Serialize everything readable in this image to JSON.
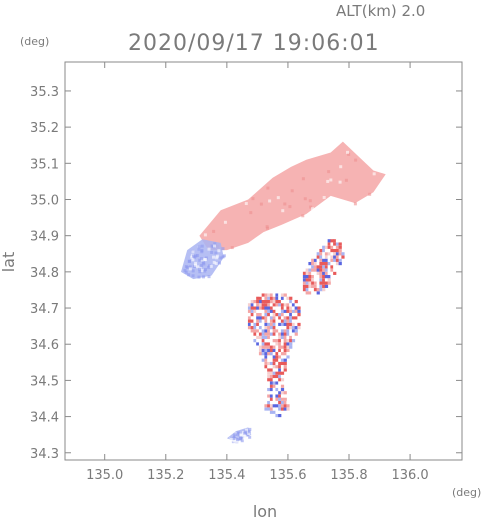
{
  "header": {
    "alt_label": "ALT(km)  2.0",
    "timestamp": "2020/09/17 19:06:01"
  },
  "chart_data": {
    "type": "heatmap",
    "title": "2020/09/17 19:06:01",
    "annotation": "ALT(km)  2.0",
    "xlabel": "lon",
    "ylabel": "lat",
    "x_unit": "(deg)",
    "y_unit": "(deg)",
    "xlim": [
      134.87,
      136.17
    ],
    "ylim": [
      34.28,
      35.38
    ],
    "x_ticks": [
      "135.0",
      "135.2",
      "135.4",
      "135.6",
      "135.8",
      "136.0"
    ],
    "x_tick_values": [
      135.0,
      135.2,
      135.4,
      135.6,
      135.8,
      136.0
    ],
    "y_ticks": [
      "34.3",
      "34.4",
      "34.5",
      "34.6",
      "34.7",
      "34.8",
      "34.9",
      "35.0",
      "35.1",
      "35.2",
      "35.3"
    ],
    "y_tick_values": [
      34.3,
      34.4,
      34.5,
      34.6,
      34.7,
      34.8,
      34.9,
      35.0,
      35.1,
      35.2,
      35.3
    ],
    "grid": false,
    "colors": {
      "positive": "#f4a6a6",
      "negative": "#a9b4f2",
      "strong_positive": "#e85a5a",
      "strong_negative": "#5a66e0"
    },
    "regions": [
      {
        "sign": "positive",
        "polygon": [
          [
            135.31,
            34.9
          ],
          [
            135.38,
            34.97
          ],
          [
            135.47,
            35.0
          ],
          [
            135.55,
            35.06
          ],
          [
            135.61,
            35.09
          ],
          [
            135.66,
            35.11
          ],
          [
            135.74,
            35.13
          ],
          [
            135.78,
            35.16
          ],
          [
            135.83,
            35.12
          ],
          [
            135.88,
            35.08
          ],
          [
            135.92,
            35.07
          ],
          [
            135.88,
            35.02
          ],
          [
            135.82,
            34.99
          ],
          [
            135.74,
            35.01
          ],
          [
            135.66,
            34.96
          ],
          [
            135.58,
            34.93
          ],
          [
            135.52,
            34.91
          ],
          [
            135.47,
            34.88
          ],
          [
            135.4,
            34.86
          ],
          [
            135.34,
            34.86
          ]
        ]
      },
      {
        "sign": "negative",
        "polygon": [
          [
            135.25,
            34.8
          ],
          [
            135.27,
            34.86
          ],
          [
            135.32,
            34.89
          ],
          [
            135.38,
            34.88
          ],
          [
            135.39,
            34.84
          ],
          [
            135.35,
            34.79
          ],
          [
            135.29,
            34.78
          ]
        ]
      },
      {
        "sign": "mixed",
        "polygon": [
          [
            135.64,
            34.78
          ],
          [
            135.68,
            34.84
          ],
          [
            135.72,
            34.88
          ],
          [
            135.76,
            34.89
          ],
          [
            135.78,
            34.84
          ],
          [
            135.73,
            34.76
          ],
          [
            135.68,
            34.72
          ],
          [
            135.65,
            34.74
          ]
        ]
      },
      {
        "sign": "mixed",
        "polygon": [
          [
            135.46,
            34.7
          ],
          [
            135.51,
            34.74
          ],
          [
            135.57,
            34.74
          ],
          [
            135.63,
            34.71
          ],
          [
            135.64,
            34.65
          ],
          [
            135.6,
            34.58
          ],
          [
            135.58,
            34.49
          ],
          [
            135.6,
            34.42
          ],
          [
            135.56,
            34.39
          ],
          [
            135.52,
            34.41
          ],
          [
            135.53,
            34.5
          ],
          [
            135.5,
            34.58
          ],
          [
            135.47,
            34.63
          ]
        ]
      },
      {
        "sign": "negative",
        "polygon": [
          [
            135.4,
            34.34
          ],
          [
            135.43,
            34.36
          ],
          [
            135.47,
            34.37
          ],
          [
            135.48,
            34.35
          ],
          [
            135.43,
            34.33
          ]
        ]
      }
    ]
  }
}
